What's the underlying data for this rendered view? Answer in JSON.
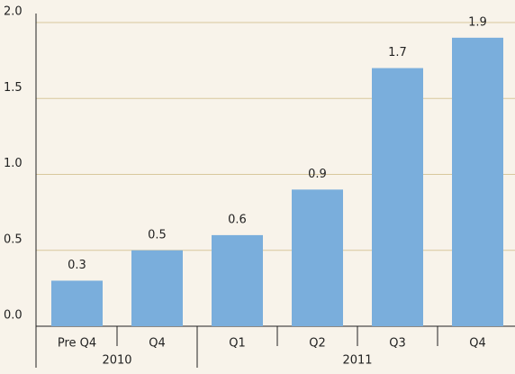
{
  "chart_data": {
    "type": "bar",
    "categories": [
      "Pre Q4",
      "Q4",
      "Q1",
      "Q2",
      "Q3",
      "Q4"
    ],
    "groups": [
      "2010",
      "2010",
      "2011",
      "2011",
      "2011",
      "2011"
    ],
    "values": [
      0.3,
      0.5,
      0.6,
      0.9,
      1.7,
      1.9
    ],
    "color": "#7aaedc",
    "ylim": [
      0,
      2
    ],
    "yticks": [
      {
        "value": 0,
        "label": "0.0"
      },
      0.5,
      {
        "value": 1,
        "label": "1.0"
      },
      1.5,
      {
        "value": 2,
        "label": "2.0"
      }
    ],
    "grid": true
  }
}
